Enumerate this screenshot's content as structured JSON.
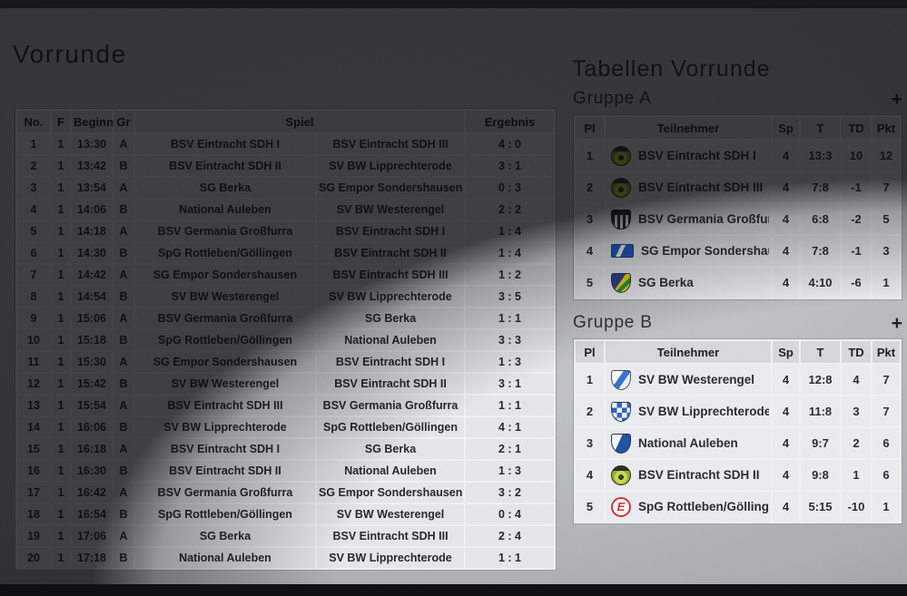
{
  "colors": {
    "page_background": "#b6b9bd",
    "table_header": "#d8d8dc",
    "table_cell": "#e8e8eb",
    "text": "#202124",
    "logo_red": "#d22f2f",
    "logo_blue": "#2c5fc2",
    "logo_yellow_green": "#cdd944"
  },
  "schedule": {
    "title": "Vorrunde",
    "headers": {
      "no": "No.",
      "f": "F",
      "beginn": "Beginn",
      "gr": "Gr",
      "spiel": "Spiel",
      "ergebnis": "Ergebnis"
    },
    "rows": [
      {
        "no": "1",
        "f": "1",
        "beginn": "13:30",
        "gr": "A",
        "home": "BSV Eintracht SDH I",
        "away": "BSV Eintracht SDH III",
        "result": "4 : 0"
      },
      {
        "no": "2",
        "f": "1",
        "beginn": "13:42",
        "gr": "B",
        "home": "BSV Eintracht SDH II",
        "away": "SV BW Lipprechterode",
        "result": "3 : 1"
      },
      {
        "no": "3",
        "f": "1",
        "beginn": "13:54",
        "gr": "A",
        "home": "SG Berka",
        "away": "SG Empor Sondershausen",
        "result": "0 : 3"
      },
      {
        "no": "4",
        "f": "1",
        "beginn": "14:06",
        "gr": "B",
        "home": "National Auleben",
        "away": "SV BW Westerengel",
        "result": "2 : 2"
      },
      {
        "no": "5",
        "f": "1",
        "beginn": "14:18",
        "gr": "A",
        "home": "BSV Germania Großfurra",
        "away": "BSV Eintracht SDH I",
        "result": "1 : 4"
      },
      {
        "no": "6",
        "f": "1",
        "beginn": "14:30",
        "gr": "B",
        "home": "SpG Rottleben/Göllingen",
        "away": "BSV Eintracht SDH II",
        "result": "1 : 4"
      },
      {
        "no": "7",
        "f": "1",
        "beginn": "14:42",
        "gr": "A",
        "home": "SG Empor Sondershausen",
        "away": "BSV Eintracht SDH III",
        "result": "1 : 2"
      },
      {
        "no": "8",
        "f": "1",
        "beginn": "14:54",
        "gr": "B",
        "home": "SV BW Westerengel",
        "away": "SV BW Lipprechterode",
        "result": "3 : 5"
      },
      {
        "no": "9",
        "f": "1",
        "beginn": "15:06",
        "gr": "A",
        "home": "BSV Germania Großfurra",
        "away": "SG Berka",
        "result": "1 : 1"
      },
      {
        "no": "10",
        "f": "1",
        "beginn": "15:18",
        "gr": "B",
        "home": "SpG Rottleben/Göllingen",
        "away": "National Auleben",
        "result": "3 : 3"
      },
      {
        "no": "11",
        "f": "1",
        "beginn": "15:30",
        "gr": "A",
        "home": "SG Empor Sondershausen",
        "away": "BSV Eintracht SDH I",
        "result": "1 : 3"
      },
      {
        "no": "12",
        "f": "1",
        "beginn": "15:42",
        "gr": "B",
        "home": "SV BW Westerengel",
        "away": "BSV Eintracht SDH II",
        "result": "3 : 1"
      },
      {
        "no": "13",
        "f": "1",
        "beginn": "15:54",
        "gr": "A",
        "home": "BSV Eintracht SDH III",
        "away": "BSV Germania Großfurra",
        "result": "1 : 1"
      },
      {
        "no": "14",
        "f": "1",
        "beginn": "16:06",
        "gr": "B",
        "home": "SV BW Lipprechterode",
        "away": "SpG Rottleben/Göllingen",
        "result": "4 : 1"
      },
      {
        "no": "15",
        "f": "1",
        "beginn": "16:18",
        "gr": "A",
        "home": "BSV Eintracht SDH I",
        "away": "SG Berka",
        "result": "2 : 1"
      },
      {
        "no": "16",
        "f": "1",
        "beginn": "16:30",
        "gr": "B",
        "home": "BSV Eintracht SDH II",
        "away": "National Auleben",
        "result": "1 : 3"
      },
      {
        "no": "17",
        "f": "1",
        "beginn": "16:42",
        "gr": "A",
        "home": "BSV Germania Großfurra",
        "away": "SG Empor Sondershausen",
        "result": "3 : 2"
      },
      {
        "no": "18",
        "f": "1",
        "beginn": "16:54",
        "gr": "B",
        "home": "SpG Rottleben/Göllingen",
        "away": "SV BW Westerengel",
        "result": "0 : 4"
      },
      {
        "no": "19",
        "f": "1",
        "beginn": "17:06",
        "gr": "A",
        "home": "SG Berka",
        "away": "BSV Eintracht SDH III",
        "result": "2 : 4"
      },
      {
        "no": "20",
        "f": "1",
        "beginn": "17:18",
        "gr": "B",
        "home": "National Auleben",
        "away": "SV BW Lipprechterode",
        "result": "1 : 1"
      }
    ]
  },
  "standings": {
    "title": "Tabellen Vorrunde",
    "groups": [
      {
        "name": "Gruppe A",
        "add_label": "+",
        "columns": [
          "Pl",
          "Teilnehmer",
          "Sp",
          "T",
          "TD",
          "Pkt"
        ],
        "rows": [
          {
            "pl": "1",
            "team": "BSV Eintracht SDH I",
            "logo": "eintracht-badge",
            "logo_letter": "",
            "sp": "4",
            "t": "13:3",
            "td": "10",
            "pkt": "12"
          },
          {
            "pl": "2",
            "team": "BSV Eintracht SDH III",
            "logo": "eintracht-badge",
            "logo_letter": "",
            "sp": "4",
            "t": "7:8",
            "td": "-1",
            "pkt": "7"
          },
          {
            "pl": "3",
            "team": "BSV Germania Großfurra",
            "logo": "germania-crest",
            "logo_letter": "",
            "sp": "4",
            "t": "6:8",
            "td": "-2",
            "pkt": "5"
          },
          {
            "pl": "4",
            "team": "SG Empor Sondershausen",
            "logo": "empor-flag",
            "logo_letter": "",
            "sp": "4",
            "t": "7:8",
            "td": "-1",
            "pkt": "3"
          },
          {
            "pl": "5",
            "team": "SG Berka",
            "logo": "berka-shield",
            "logo_letter": "",
            "sp": "4",
            "t": "4:10",
            "td": "-6",
            "pkt": "1"
          }
        ]
      },
      {
        "name": "Gruppe B",
        "add_label": "+",
        "columns": [
          "Pl",
          "Teilnehmer",
          "Sp",
          "T",
          "TD",
          "Pkt"
        ],
        "rows": [
          {
            "pl": "1",
            "team": "SV BW Westerengel",
            "logo": "westerengel-crest",
            "logo_letter": "",
            "sp": "4",
            "t": "12:8",
            "td": "4",
            "pkt": "7"
          },
          {
            "pl": "2",
            "team": "SV BW Lipprechterode",
            "logo": "lipprechterode-crest",
            "logo_letter": "",
            "sp": "4",
            "t": "11:8",
            "td": "3",
            "pkt": "7"
          },
          {
            "pl": "3",
            "team": "National Auleben",
            "logo": "auleben-shield",
            "logo_letter": "",
            "sp": "4",
            "t": "9:7",
            "td": "2",
            "pkt": "6"
          },
          {
            "pl": "4",
            "team": "BSV Eintracht SDH II",
            "logo": "eintracht-badge",
            "logo_letter": "",
            "sp": "4",
            "t": "9:8",
            "td": "1",
            "pkt": "6"
          },
          {
            "pl": "5",
            "team": "SpG Rottleben/Göllingen",
            "logo": "rottleben-circle",
            "logo_letter": "E",
            "sp": "4",
            "t": "5:15",
            "td": "-10",
            "pkt": "1"
          }
        ]
      }
    ]
  }
}
